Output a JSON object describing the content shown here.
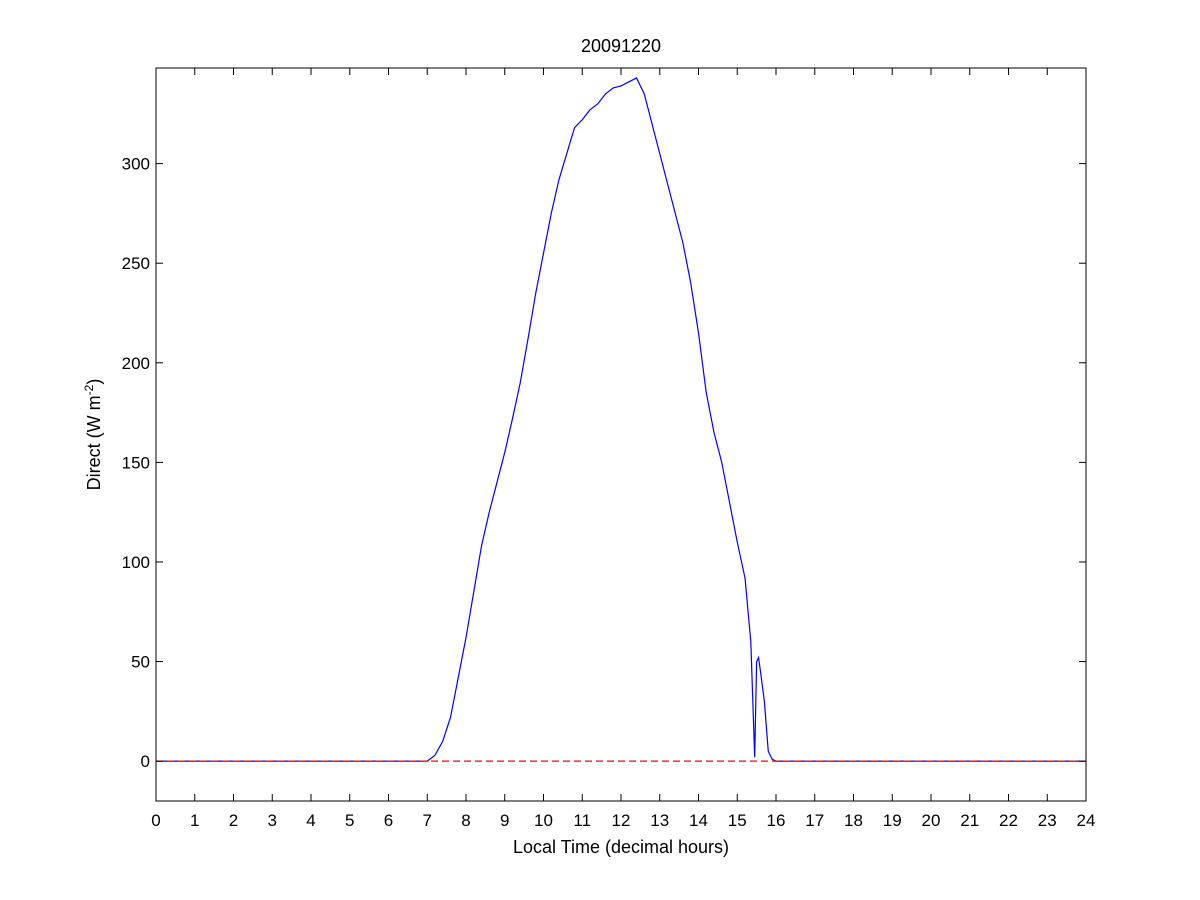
{
  "chart_data": {
    "type": "line",
    "title": "20091220",
    "xlabel": "Local Time (decimal hours)",
    "ylabel": {
      "text": "Direct (W m",
      "superscript": "-2",
      "suffix": ")"
    },
    "xlim": [
      0,
      24
    ],
    "ylim": [
      -20,
      348
    ],
    "x_ticks": [
      0,
      1,
      2,
      3,
      4,
      5,
      6,
      7,
      8,
      9,
      10,
      11,
      12,
      13,
      14,
      15,
      16,
      17,
      18,
      19,
      20,
      21,
      22,
      23,
      24
    ],
    "y_ticks": [
      0,
      50,
      100,
      150,
      200,
      250,
      300
    ],
    "grid": false,
    "colors": {
      "series": "#0000ff",
      "baseline": "#ff0000",
      "axes": "#000000"
    },
    "series": [
      {
        "style": "solid",
        "color": "#0000ff",
        "x": [
          0,
          1,
          2,
          3,
          4,
          5,
          6,
          7.0,
          7.2,
          7.4,
          7.6,
          7.8,
          8.0,
          8.2,
          8.4,
          8.6,
          8.8,
          9.0,
          9.2,
          9.4,
          9.6,
          9.8,
          10.0,
          10.2,
          10.4,
          10.6,
          10.8,
          11.0,
          11.2,
          11.4,
          11.6,
          11.8,
          12.0,
          12.2,
          12.4,
          12.6,
          12.8,
          13.0,
          13.2,
          13.4,
          13.6,
          13.8,
          14.0,
          14.2,
          14.4,
          14.6,
          14.8,
          15.0,
          15.2,
          15.35,
          15.45,
          15.5,
          15.55,
          15.6,
          15.7,
          15.8,
          15.9,
          16.0,
          16.5,
          17,
          18,
          19,
          20,
          21,
          22,
          23,
          24
        ],
        "y": [
          0,
          0,
          0,
          0,
          0,
          0,
          0,
          0,
          3,
          10,
          22,
          42,
          62,
          85,
          108,
          125,
          140,
          155,
          172,
          190,
          212,
          235,
          255,
          275,
          292,
          305,
          318,
          322,
          327,
          330,
          335,
          338,
          339,
          341,
          343,
          335,
          320,
          305,
          290,
          275,
          260,
          240,
          215,
          185,
          165,
          150,
          130,
          110,
          92,
          60,
          2,
          50,
          52,
          45,
          30,
          5,
          1,
          0,
          0,
          0,
          0,
          0,
          0,
          0,
          0,
          0,
          0
        ]
      },
      {
        "style": "dashed",
        "color": "#ff0000",
        "x": [
          0,
          24
        ],
        "y": [
          0,
          0
        ]
      }
    ]
  }
}
